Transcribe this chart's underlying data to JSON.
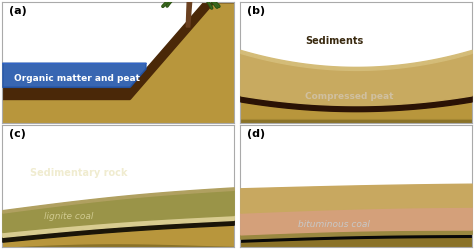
{
  "fig_width": 4.74,
  "fig_height": 2.49,
  "dpi": 100,
  "border_color": "#aaaaaa",
  "background_color": "#ffffff",
  "panel_labels": [
    "(a)",
    "(b)",
    "(c)",
    "(d)"
  ],
  "label_fontsize": 8,
  "text_fontsize": 7,
  "colors": {
    "sky": "#ffffff",
    "water_blue": "#2255aa",
    "water_top": "#3366cc",
    "organic_brown": "#4a2808",
    "ground_tan": "#b8963c",
    "ground_dark": "#8a7228",
    "sediment_tan": "#c8aa60",
    "sediment_light": "#d4bc78",
    "compressed_peat": "#2a1205",
    "cpeat_band": "#3a1a08",
    "rock_olive": "#9a9448",
    "rock_light": "#b0a060",
    "lignite_dark": "#1a1508",
    "lignite_band": "#2a2010",
    "lignite_light_cream": "#d8cc90",
    "bituminous_black": "#080808",
    "bit_dark_tan": "#9a8840",
    "peach_tan": "#d4a07a",
    "top_tan": "#c8a860",
    "tan_rim": "#c0a050",
    "palm_trunk": "#6a4020",
    "palm_green_dark": "#2a5010",
    "palm_green_mid": "#3a6820",
    "palm_green_light": "#4a8030"
  }
}
